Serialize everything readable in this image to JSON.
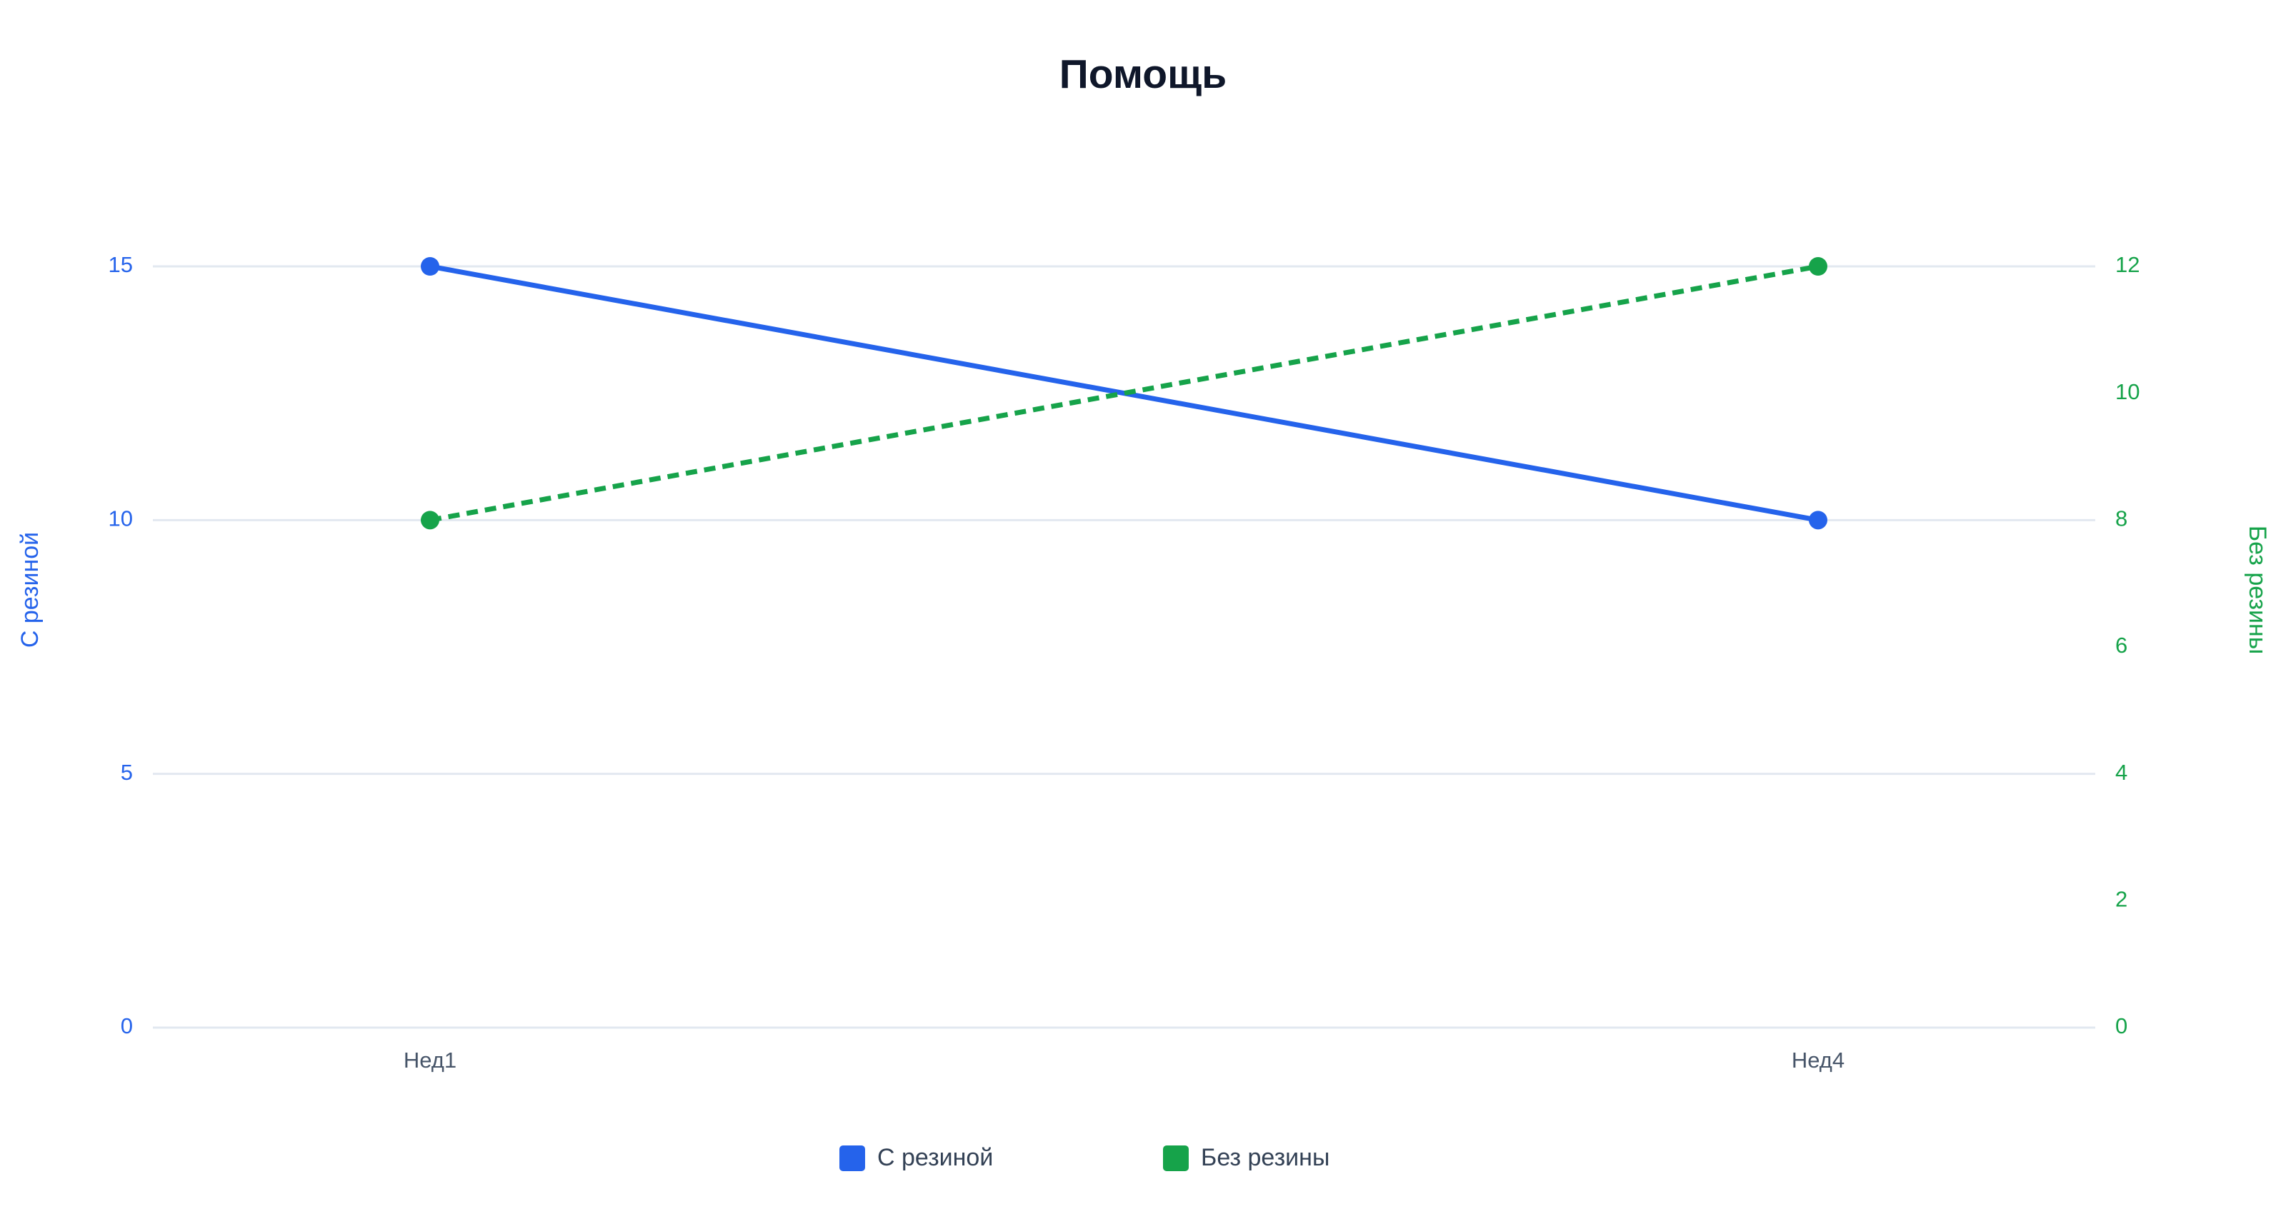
{
  "chart_data": {
    "type": "line",
    "title": "Помощь",
    "categories": [
      "Нед1",
      "Нед4"
    ],
    "y_label": "С резиной",
    "y2_label": "Без резины",
    "ylim": [
      0,
      15
    ],
    "yticks": [
      0,
      5,
      10,
      15
    ],
    "y2lim": [
      0,
      12
    ],
    "y2ticks": [
      0,
      2,
      4,
      6,
      8,
      10,
      12
    ],
    "grid": true,
    "legend": "bottom",
    "series": [
      {
        "name": "С резиной",
        "color": "#2563eb",
        "values": [
          15,
          10
        ],
        "axis": "y",
        "line_style": "solid"
      },
      {
        "name": "Без резины",
        "color": "#16a34a",
        "values": [
          8,
          12
        ],
        "axis": "y2",
        "line_style": "dashed"
      }
    ]
  }
}
